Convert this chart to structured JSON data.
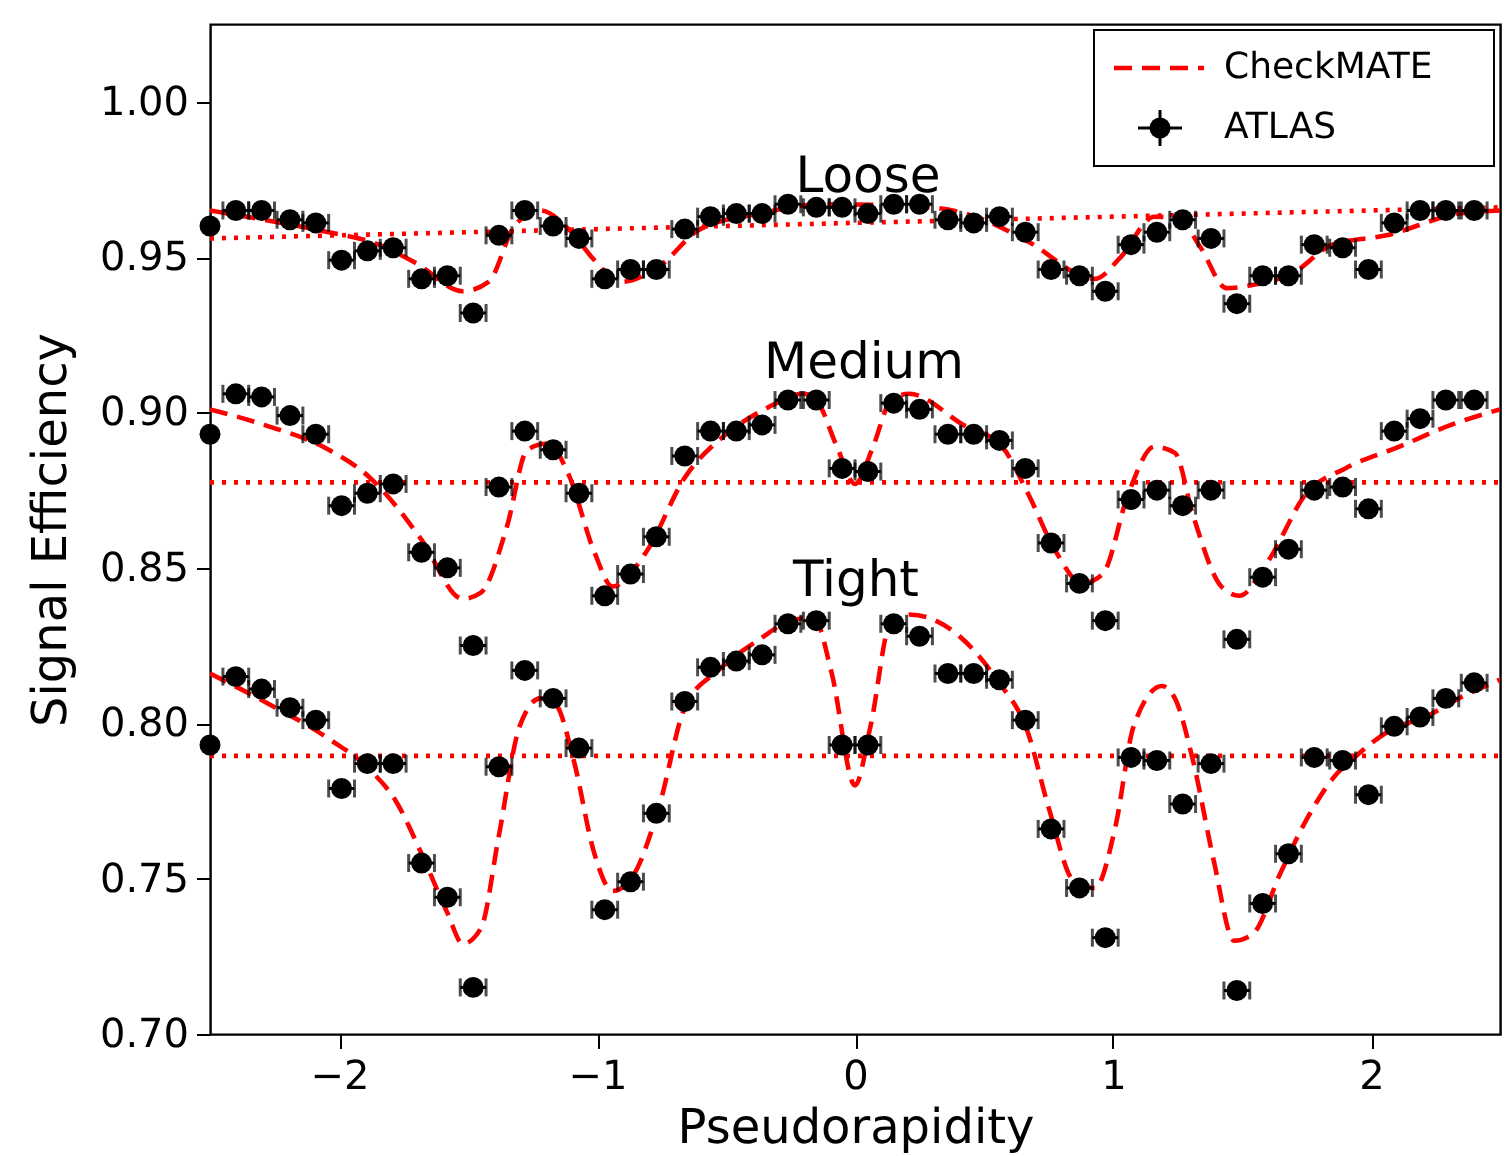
{
  "chart_data": {
    "type": "scatter",
    "xlabel": "Pseudorapidity",
    "ylabel": "Signal Efficiency",
    "xlim": [
      -2.5,
      2.5
    ],
    "ylim": [
      0.7,
      1.025
    ],
    "xticks": [
      {
        "value": -2,
        "label": "−2"
      },
      {
        "value": -1,
        "label": "−1"
      },
      0,
      1,
      2
    ],
    "yticks": [
      {
        "value": 0.7,
        "label": "0.70"
      },
      0.75,
      {
        "value": 0.8,
        "label": "0.80"
      },
      0.85,
      {
        "value": 0.9,
        "label": "0.90"
      },
      0.95,
      {
        "value": 1.0,
        "label": "1.00"
      }
    ],
    "grid": false,
    "legend": "top right",
    "annotations": [
      "Loose",
      "Medium",
      "Tight"
    ],
    "x": [
      -2.5,
      -2.4,
      -2.3,
      -2.19,
      -2.09,
      -1.99,
      -1.89,
      -1.79,
      -1.68,
      -1.58,
      -1.48,
      -1.38,
      -1.28,
      -1.17,
      -1.07,
      -0.97,
      -0.87,
      -0.77,
      -0.66,
      -0.56,
      -0.46,
      -0.36,
      -0.26,
      -0.15,
      -0.05,
      0.05,
      0.15,
      0.25,
      0.36,
      0.46,
      0.56,
      0.66,
      0.76,
      0.87,
      0.97,
      1.07,
      1.17,
      1.27,
      1.38,
      1.48,
      1.58,
      1.68,
      1.78,
      1.89,
      1.99,
      2.09,
      2.19,
      2.29,
      2.4
    ],
    "series": [
      {
        "name": "CheckMATE",
        "type": "line",
        "line_style": "dashed",
        "color": "#ff0000",
        "x": [
          -2.5,
          -2.29,
          -2.04,
          -1.88,
          -1.7,
          -1.52,
          -1.42,
          -1.32,
          -1.22,
          -1.11,
          -1.01,
          -0.91,
          -0.76,
          -0.6,
          -0.37,
          -0.12,
          0.29,
          0.5,
          0.67,
          0.93,
          1.03,
          1.16,
          1.26,
          1.34,
          1.44,
          1.54,
          1.7,
          1.85,
          2.06,
          2.34,
          2.5
        ],
        "values": [
          0.965,
          0.962,
          0.958,
          0.955,
          0.948,
          0.939,
          0.942,
          0.96,
          0.965,
          0.959,
          0.949,
          0.942,
          0.947,
          0.959,
          0.964,
          0.967,
          0.966,
          0.962,
          0.955,
          0.943,
          0.95,
          0.963,
          0.962,
          0.953,
          0.94,
          0.941,
          0.945,
          0.954,
          0.957,
          0.964,
          0.965
        ]
      },
      {
        "type": "line",
        "line_style": "dashed",
        "color": "#ff0000",
        "x": [
          -2.5,
          -2.29,
          -2.04,
          -1.88,
          -1.78,
          -1.68,
          -1.52,
          -1.45,
          -1.35,
          -1.27,
          -1.19,
          -1.11,
          -1.01,
          -0.94,
          -0.81,
          -0.66,
          -0.5,
          -0.35,
          -0.2,
          -0.15,
          -0.07,
          0,
          0.07,
          0.14,
          0.21,
          0.42,
          0.57,
          0.67,
          0.78,
          0.88,
          0.96,
          1.06,
          1.16,
          1.24,
          1.31,
          1.42,
          1.49,
          1.6,
          1.75,
          1.9,
          2.11,
          2.31,
          2.5
        ],
        "values": [
          0.901,
          0.896,
          0.888,
          0.879,
          0.87,
          0.859,
          0.84,
          0.842,
          0.863,
          0.888,
          0.89,
          0.88,
          0.855,
          0.844,
          0.855,
          0.879,
          0.893,
          0.901,
          0.906,
          0.904,
          0.889,
          0.877,
          0.889,
          0.904,
          0.906,
          0.896,
          0.889,
          0.874,
          0.855,
          0.845,
          0.848,
          0.874,
          0.889,
          0.887,
          0.867,
          0.844,
          0.841,
          0.852,
          0.874,
          0.882,
          0.889,
          0.896,
          0.901
        ]
      },
      {
        "type": "line",
        "line_style": "dashed",
        "color": "#ff0000",
        "x": [
          -2.5,
          -2.29,
          -2.04,
          -1.88,
          -1.78,
          -1.68,
          -1.58,
          -1.52,
          -1.45,
          -1.38,
          -1.3,
          -1.22,
          -1.16,
          -1.09,
          -1.01,
          -0.94,
          -0.86,
          -0.76,
          -0.66,
          -0.53,
          -0.37,
          -0.25,
          -0.16,
          -0.09,
          0,
          0.06,
          0.14,
          0.21,
          0.39,
          0.55,
          0.67,
          0.75,
          0.85,
          0.93,
          1.01,
          1.08,
          1.19,
          1.24,
          1.31,
          1.39,
          1.47,
          1.54,
          1.65,
          1.75,
          1.85,
          1.95,
          2.08,
          2.21,
          2.34,
          2.5
        ],
        "values": [
          0.816,
          0.807,
          0.795,
          0.785,
          0.775,
          0.758,
          0.739,
          0.729,
          0.734,
          0.764,
          0.799,
          0.808,
          0.806,
          0.788,
          0.758,
          0.746,
          0.751,
          0.773,
          0.805,
          0.817,
          0.827,
          0.833,
          0.834,
          0.816,
          0.78,
          0.799,
          0.833,
          0.835,
          0.829,
          0.814,
          0.797,
          0.773,
          0.749,
          0.747,
          0.767,
          0.799,
          0.812,
          0.808,
          0.788,
          0.756,
          0.73,
          0.732,
          0.752,
          0.769,
          0.782,
          0.79,
          0.798,
          0.802,
          0.808,
          0.814
        ]
      },
      {
        "type": "line",
        "line_style": "dotted",
        "color": "#ff0000",
        "x": [
          -2.5,
          2.5
        ],
        "values": [
          0.956,
          0.966
        ]
      },
      {
        "type": "line",
        "line_style": "dotted",
        "color": "#ff0000",
        "x": [
          -2.5,
          2.5
        ],
        "values": [
          0.8775,
          0.8775
        ]
      },
      {
        "type": "line",
        "line_style": "dotted",
        "color": "#ff0000",
        "x": [
          -2.5,
          2.5
        ],
        "values": [
          0.7895,
          0.7895
        ]
      },
      {
        "name": "ATLAS",
        "marker": "circle",
        "color": "#000000",
        "values": [
          0.96,
          0.965,
          0.965,
          0.962,
          0.961,
          0.949,
          0.952,
          0.953,
          0.943,
          0.944,
          0.932,
          0.957,
          0.965,
          0.96,
          0.956,
          0.943,
          0.946,
          0.946,
          0.959,
          0.963,
          0.964,
          0.964,
          0.967,
          0.966,
          0.966,
          0.964,
          0.967,
          0.967,
          0.962,
          0.961,
          0.963,
          0.958,
          0.946,
          0.944,
          0.939,
          0.954,
          0.958,
          0.962,
          0.956,
          0.935,
          0.944,
          0.944,
          0.954,
          0.953,
          0.946,
          0.961,
          0.965,
          0.965,
          0.965
        ],
        "xerrors": [
          null,
          0.05,
          0.05,
          0.05,
          0.05,
          0.05,
          0.05,
          0.05,
          0.05,
          0.05,
          0.05,
          0.05,
          0.05,
          0.05,
          0.05,
          0.05,
          0.05,
          0.05,
          0.05,
          0.05,
          0.05,
          0.05,
          0.05,
          0.05,
          0.05,
          0.05,
          0.05,
          0.05,
          0.05,
          0.05,
          0.05,
          0.05,
          0.05,
          0.05,
          0.05,
          0.05,
          0.05,
          0.05,
          0.05,
          0.05,
          0.05,
          0.05,
          0.05,
          0.05,
          0.05,
          0.05,
          0.05,
          0.05,
          0.05
        ]
      },
      {
        "marker": "circle",
        "color": "#000000",
        "values": [
          0.893,
          0.906,
          0.905,
          0.899,
          0.893,
          0.87,
          0.874,
          0.877,
          0.855,
          0.85,
          0.825,
          0.876,
          0.894,
          0.888,
          0.874,
          0.841,
          0.848,
          0.86,
          0.886,
          0.894,
          0.894,
          0.896,
          0.904,
          0.904,
          0.882,
          0.881,
          0.903,
          0.901,
          0.893,
          0.893,
          0.891,
          0.882,
          0.858,
          0.845,
          0.833,
          0.872,
          0.875,
          0.87,
          0.875,
          0.827,
          0.847,
          0.856,
          0.875,
          0.876,
          0.869,
          0.894,
          0.898,
          0.904,
          0.904
        ],
        "xerrors": [
          null,
          0.05,
          0.05,
          0.05,
          0.05,
          0.05,
          0.05,
          0.05,
          0.05,
          0.05,
          0.05,
          0.05,
          0.05,
          0.05,
          0.05,
          0.05,
          0.05,
          0.05,
          0.05,
          0.05,
          0.05,
          0.05,
          0.05,
          0.05,
          0.05,
          0.05,
          0.05,
          0.05,
          0.05,
          0.05,
          0.05,
          0.05,
          0.05,
          0.05,
          0.05,
          0.05,
          0.05,
          0.05,
          0.05,
          0.05,
          0.05,
          0.05,
          0.05,
          0.05,
          0.05,
          0.05,
          0.05,
          0.05,
          0.05
        ]
      },
      {
        "marker": "circle",
        "color": "#000000",
        "values": [
          0.793,
          0.815,
          0.811,
          0.805,
          0.801,
          0.779,
          0.787,
          0.787,
          0.755,
          0.744,
          0.715,
          0.786,
          0.817,
          0.808,
          0.792,
          0.74,
          0.749,
          0.771,
          0.807,
          0.818,
          0.82,
          0.822,
          0.832,
          0.833,
          0.793,
          0.793,
          0.832,
          0.828,
          0.816,
          0.816,
          0.814,
          0.801,
          0.766,
          0.747,
          0.731,
          0.789,
          0.788,
          0.774,
          0.787,
          0.714,
          0.742,
          0.758,
          0.789,
          0.788,
          0.777,
          0.799,
          0.802,
          0.808,
          0.813
        ],
        "xerrors": [
          null,
          0.05,
          0.05,
          0.05,
          0.05,
          0.05,
          0.05,
          0.05,
          0.05,
          0.05,
          0.05,
          0.05,
          0.05,
          0.05,
          0.05,
          0.05,
          0.05,
          0.05,
          0.05,
          0.05,
          0.05,
          0.05,
          0.05,
          0.05,
          0.05,
          0.05,
          0.05,
          0.05,
          0.05,
          0.05,
          0.05,
          0.05,
          0.05,
          0.05,
          0.05,
          0.05,
          0.05,
          0.05,
          0.05,
          0.05,
          0.05,
          0.05,
          0.05,
          0.05,
          0.05,
          0.05,
          0.05,
          0.05,
          0.05
        ]
      }
    ]
  }
}
